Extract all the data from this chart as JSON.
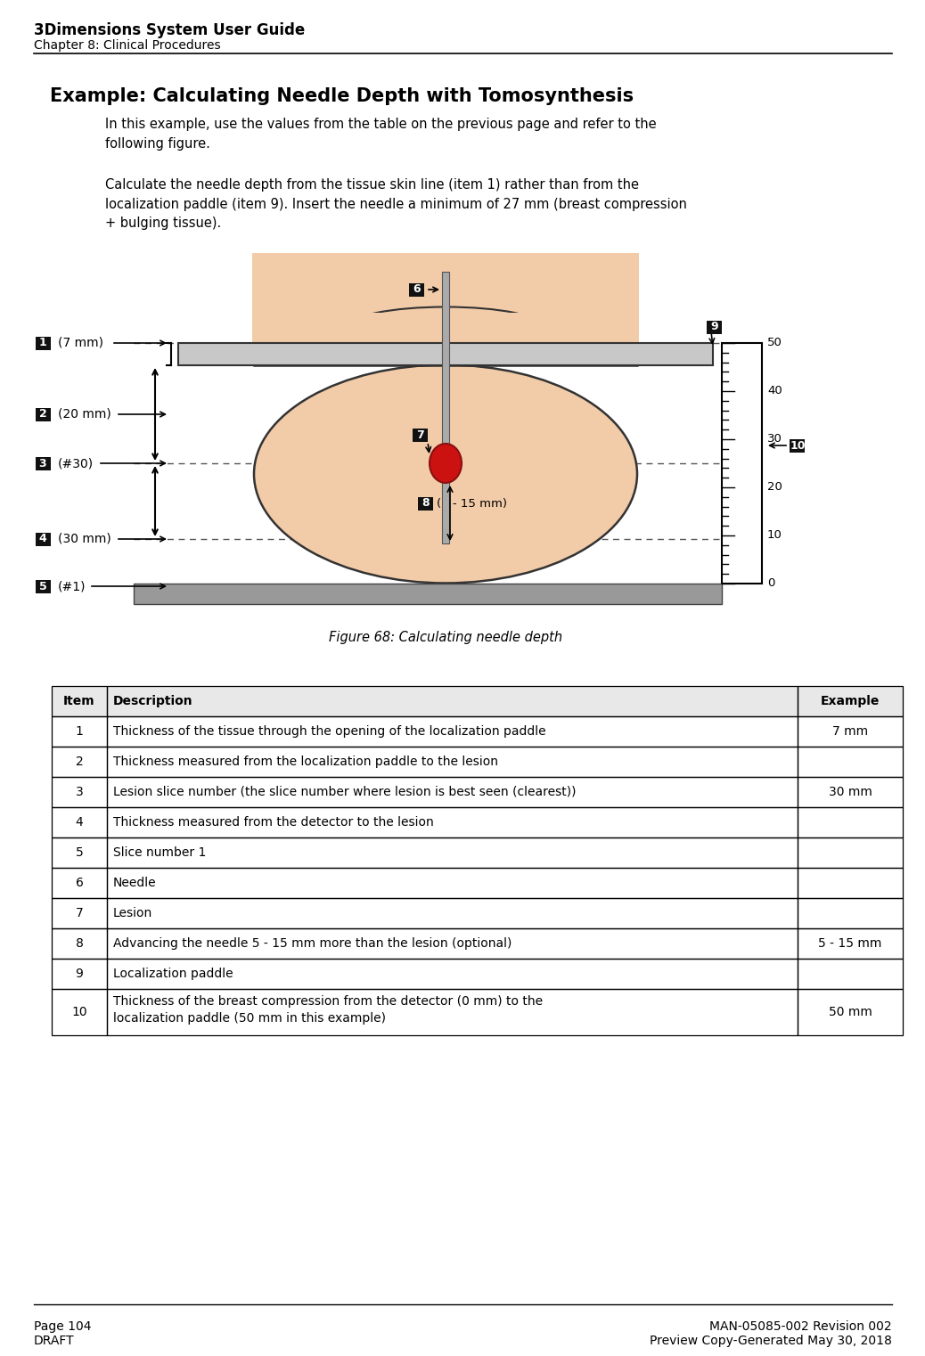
{
  "page_title": "3Dimensions System User Guide",
  "page_subtitle": "Chapter 8: Clinical Procedures",
  "section_title": "Example: Calculating Needle Depth with Tomosynthesis",
  "para1": "In this example, use the values from the table on the previous page and refer to the\nfollowing figure.",
  "para2": "Calculate the needle depth from the tissue skin line (item 1) rather than from the\nlocalization paddle (item 9). Insert the needle a minimum of 27 mm (breast compression\n+ bulging tissue).",
  "fig_caption": "Figure 68: Calculating needle depth",
  "footer_left1": "Page 104",
  "footer_left2": "DRAFT",
  "footer_right1": "MAN-05085-002 Revision 002",
  "footer_right2": "Preview Copy-Generated May 30, 2018",
  "table_rows": [
    [
      "1",
      "Thickness of the tissue through the opening of the localization paddle",
      "7 mm"
    ],
    [
      "2",
      "Thickness measured from the localization paddle to the lesion",
      ""
    ],
    [
      "3",
      "Lesion slice number (the slice number where lesion is best seen (clearest))",
      "30 mm"
    ],
    [
      "4",
      "Thickness measured from the detector to the lesion",
      ""
    ],
    [
      "5",
      "Slice number 1",
      ""
    ],
    [
      "6",
      "Needle",
      ""
    ],
    [
      "7",
      "Lesion",
      ""
    ],
    [
      "8",
      "Advancing the needle 5 - 15 mm more than the lesion (optional)",
      "5 - 15 mm"
    ],
    [
      "9",
      "Localization paddle",
      ""
    ],
    [
      "10",
      "Thickness of the breast compression from the detector (0 mm) to the\nlocalization paddle (50 mm in this example)",
      "50 mm"
    ]
  ],
  "bg_color": "#ffffff",
  "tissue_color": "#f2cba8",
  "tissue_edge_color": "#333333",
  "paddle_fill": "#c8c8c8",
  "paddle_edge": "#333333",
  "needle_fill": "#888888",
  "needle_edge": "#444444",
  "lesion_color": "#cc1111",
  "lesion_edge": "#881111",
  "detector_fill": "#999999",
  "detector_edge": "#444444",
  "dotted_color": "#555555",
  "label_bg": "#111111",
  "label_fg": "#ffffff",
  "ruler_fill": "#ffffff",
  "ruler_edge": "#000000"
}
